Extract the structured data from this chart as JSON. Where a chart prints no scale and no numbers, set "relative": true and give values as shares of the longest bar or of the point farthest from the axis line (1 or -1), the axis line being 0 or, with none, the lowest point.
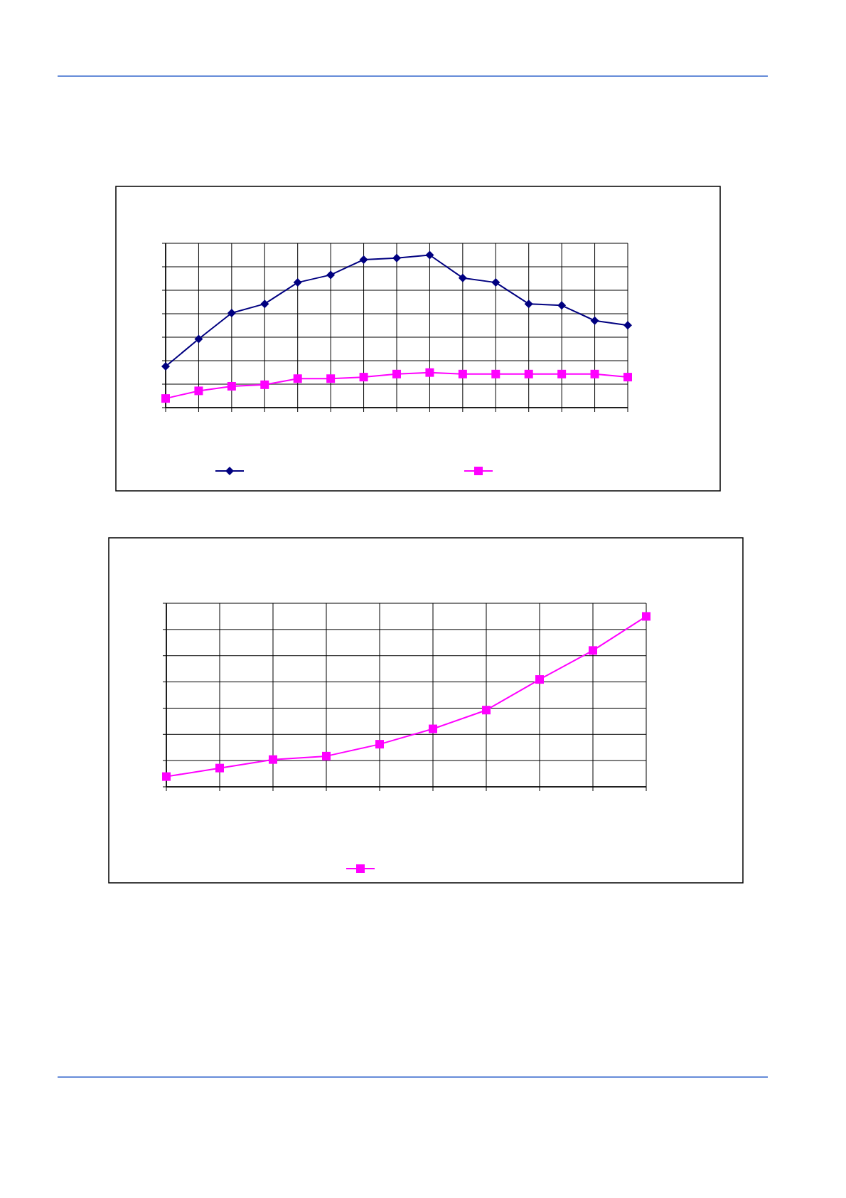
{
  "chart_data": [
    {
      "type": "line",
      "relative": true,
      "grid": true,
      "categories": [
        null,
        null,
        null,
        null,
        null,
        null,
        null,
        null,
        null,
        null,
        null,
        null,
        null,
        null,
        null
      ],
      "series": [
        {
          "color": "#000080",
          "marker": "diamond",
          "values": [
            0.27,
            0.45,
            0.62,
            0.68,
            0.82,
            0.87,
            0.97,
            0.98,
            1,
            0.85,
            0.82,
            0.68,
            0.67,
            0.57,
            0.54
          ]
        },
        {
          "color": "#ff00ff",
          "marker": "square",
          "values": [
            0.06,
            0.11,
            0.14,
            0.15,
            0.19,
            0.19,
            0.2,
            0.22,
            0.23,
            0.22,
            0.22,
            0.22,
            0.22,
            0.22,
            0.2
          ]
        }
      ]
    },
    {
      "type": "line",
      "relative": true,
      "grid": true,
      "categories": [
        null,
        null,
        null,
        null,
        null,
        null,
        null,
        null,
        null,
        null
      ],
      "series": [
        {
          "color": "#ff00ff",
          "marker": "square",
          "values": [
            0.06,
            0.11,
            0.16,
            0.18,
            0.25,
            0.34,
            0.45,
            0.63,
            0.8,
            1
          ]
        }
      ]
    }
  ]
}
